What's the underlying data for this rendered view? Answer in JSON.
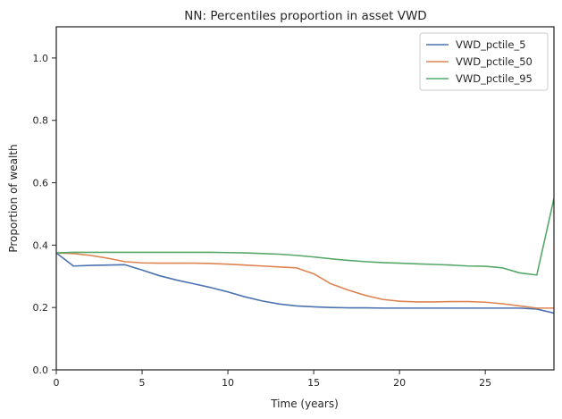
{
  "chart_data": {
    "type": "line",
    "title": "NN: Percentiles proportion in asset VWD",
    "xlabel": "Time (years)",
    "ylabel": "Proportion of wealth",
    "xlim": [
      0,
      29
    ],
    "ylim": [
      0,
      1.1
    ],
    "xticks": [
      0,
      5,
      10,
      15,
      20,
      25
    ],
    "yticks": [
      0.0,
      0.2,
      0.4,
      0.6,
      0.8,
      1.0
    ],
    "grid": false,
    "legend_position": "top-right",
    "x": [
      0,
      1,
      2,
      3,
      4,
      5,
      6,
      7,
      8,
      9,
      10,
      11,
      12,
      13,
      14,
      15,
      16,
      17,
      18,
      19,
      20,
      21,
      22,
      23,
      24,
      25,
      26,
      27,
      28,
      29
    ],
    "series": [
      {
        "name": "VWD_pctile_5",
        "color": "#4c72b0",
        "values": [
          0.375,
          0.333,
          0.335,
          0.336,
          0.337,
          0.32,
          0.302,
          0.288,
          0.276,
          0.264,
          0.25,
          0.234,
          0.221,
          0.211,
          0.205,
          0.202,
          0.2,
          0.199,
          0.199,
          0.198,
          0.198,
          0.198,
          0.198,
          0.198,
          0.198,
          0.198,
          0.198,
          0.198,
          0.195,
          0.182
        ]
      },
      {
        "name": "VWD_pctile_50",
        "color": "#dd8452",
        "values": [
          0.375,
          0.373,
          0.367,
          0.358,
          0.347,
          0.343,
          0.342,
          0.342,
          0.342,
          0.341,
          0.339,
          0.336,
          0.333,
          0.33,
          0.327,
          0.308,
          0.276,
          0.256,
          0.239,
          0.226,
          0.22,
          0.218,
          0.218,
          0.219,
          0.219,
          0.217,
          0.212,
          0.205,
          0.198,
          0.198
        ]
      },
      {
        "name": "VWD_pctile_95",
        "color": "#55a868",
        "values": [
          0.375,
          0.377,
          0.377,
          0.377,
          0.377,
          0.377,
          0.377,
          0.377,
          0.377,
          0.377,
          0.376,
          0.375,
          0.373,
          0.371,
          0.367,
          0.362,
          0.356,
          0.351,
          0.347,
          0.344,
          0.342,
          0.34,
          0.338,
          0.336,
          0.333,
          0.332,
          0.327,
          0.311,
          0.304,
          0.55
        ]
      }
    ]
  }
}
